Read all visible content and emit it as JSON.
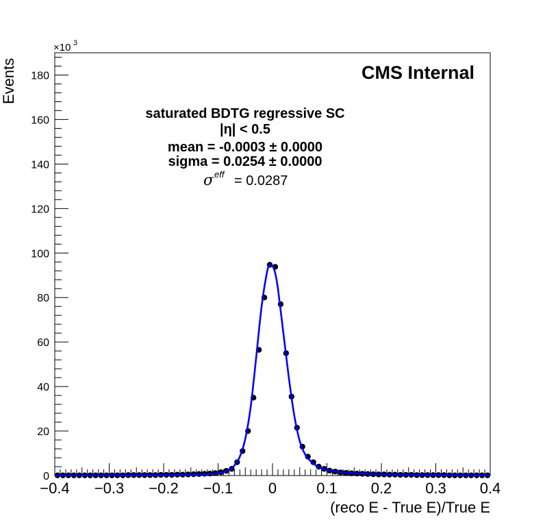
{
  "chart_data": {
    "type": "scatter",
    "xlabel": "(reco E - True E)/True E",
    "ylabel": "Events",
    "y_multiplier_label": "×10",
    "y_multiplier_exp": "3",
    "xlim": [
      -0.4,
      0.4
    ],
    "ylim": [
      0,
      190
    ],
    "x_ticks": [
      -0.4,
      -0.3,
      -0.2,
      -0.1,
      0,
      0.1,
      0.2,
      0.3,
      0.4
    ],
    "x_tick_labels": [
      "−0.4",
      "−0.3",
      "−0.2",
      "−0.1",
      "0",
      "0.1",
      "0.2",
      "0.3",
      "0.4"
    ],
    "y_ticks": [
      0,
      20,
      40,
      60,
      80,
      100,
      120,
      140,
      160,
      180
    ],
    "y_tick_labels": [
      "0",
      "20",
      "40",
      "60",
      "80",
      "100",
      "120",
      "140",
      "160",
      "180"
    ],
    "grid": false,
    "legend": "none",
    "annotations": {
      "experiment": "CMS Internal",
      "line1": "saturated BDTG regressive SC",
      "line2": "|η| < 0.5",
      "line3": "mean = -0.0003 ± 0.0000",
      "line4": "sigma = 0.0254 ± 0.0000",
      "sigma_symbol": "σ",
      "sigma_superscript": "eff",
      "sigma_value": "= 0.0287"
    },
    "series": [
      {
        "kind": "points",
        "color": "#000000",
        "x": [
          -0.395,
          -0.385,
          -0.375,
          -0.365,
          -0.355,
          -0.345,
          -0.335,
          -0.325,
          -0.315,
          -0.305,
          -0.295,
          -0.285,
          -0.275,
          -0.265,
          -0.255,
          -0.245,
          -0.235,
          -0.225,
          -0.215,
          -0.205,
          -0.195,
          -0.185,
          -0.175,
          -0.165,
          -0.155,
          -0.145,
          -0.135,
          -0.125,
          -0.115,
          -0.105,
          -0.095,
          -0.085,
          -0.075,
          -0.065,
          -0.055,
          -0.045,
          -0.035,
          -0.025,
          -0.015,
          -0.005,
          0.005,
          0.015,
          0.025,
          0.035,
          0.045,
          0.055,
          0.065,
          0.075,
          0.085,
          0.095,
          0.105,
          0.115,
          0.125,
          0.135,
          0.145,
          0.155,
          0.165,
          0.175,
          0.185,
          0.195,
          0.205,
          0.215,
          0.225,
          0.235,
          0.245,
          0.255,
          0.265,
          0.275,
          0.285,
          0.295,
          0.305,
          0.315,
          0.325,
          0.335,
          0.345,
          0.355,
          0.365,
          0.375,
          0.385,
          0.395
        ],
        "y": [
          0.1,
          0.1,
          0.1,
          0.1,
          0.1,
          0.1,
          0.1,
          0.1,
          0.1,
          0.1,
          0.1,
          0.1,
          0.1,
          0.2,
          0.2,
          0.2,
          0.2,
          0.2,
          0.2,
          0.3,
          0.3,
          0.3,
          0.4,
          0.4,
          0.5,
          0.6,
          0.7,
          0.8,
          0.9,
          1.1,
          1.5,
          2.1,
          3.0,
          6.0,
          11.0,
          20.0,
          35.0,
          56.5,
          80.0,
          94.7,
          93.8,
          77.0,
          55.0,
          35.5,
          21.5,
          13.0,
          8.5,
          6.0,
          4.0,
          3.0,
          2.2,
          1.8,
          1.4,
          1.2,
          1.0,
          0.9,
          0.8,
          0.7,
          0.6,
          0.5,
          0.5,
          0.4,
          0.4,
          0.3,
          0.3,
          0.3,
          0.2,
          0.2,
          0.2,
          0.2,
          0.2,
          0.2,
          0.1,
          0.1,
          0.1,
          0.1,
          0.1,
          0.1,
          0.1,
          0.1
        ]
      },
      {
        "kind": "fit",
        "color": "#0000ff",
        "x": [
          -0.4,
          -0.3,
          -0.2,
          -0.15,
          -0.12,
          -0.1,
          -0.09,
          -0.08,
          -0.07,
          -0.06,
          -0.05,
          -0.04,
          -0.03,
          -0.02,
          -0.01,
          -0.005,
          0,
          0.005,
          0.01,
          0.02,
          0.03,
          0.04,
          0.05,
          0.06,
          0.07,
          0.08,
          0.09,
          0.1,
          0.12,
          0.15,
          0.2,
          0.3,
          0.4
        ],
        "y": [
          0,
          0.1,
          0.2,
          0.4,
          0.6,
          1.0,
          1.5,
          2.5,
          4.5,
          8.5,
          16.5,
          31.0,
          53.0,
          76.0,
          91.5,
          94.5,
          94.2,
          91.0,
          84.0,
          64.0,
          44.0,
          27.0,
          15.5,
          9.5,
          6.5,
          4.5,
          3.3,
          2.5,
          1.6,
          1.0,
          0.5,
          0.2,
          0.1
        ]
      }
    ]
  }
}
